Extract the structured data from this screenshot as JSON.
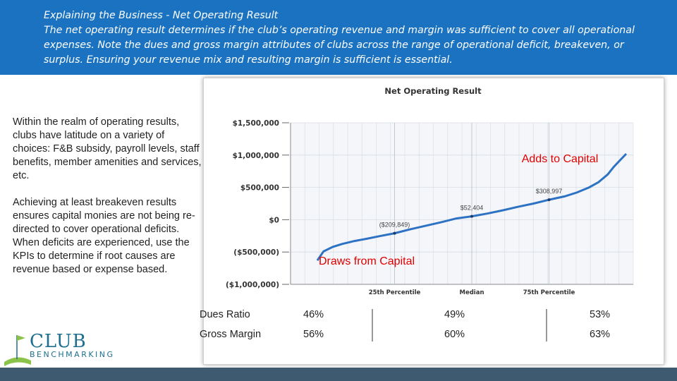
{
  "header": {
    "title": "Explaining the Business  -  Net Operating Result",
    "description": "The net operating result determines if the club’s operating revenue and margin was sufficient to cover all operational expenses. Note the dues and gross margin attributes of clubs across the range of operational deficit, breakeven, or surplus. Ensuring your revenue mix and resulting margin is sufficient is essential."
  },
  "left_text": {
    "para1": "Within the realm of operating results, clubs have latitude on a variety of choices: F&B subsidy, payroll levels, staff benefits, member amenities and services, etc.",
    "para2": "Achieving at least breakeven results ensures capital monies are not being re-directed to cover operational deficits. When deficits are experienced, use the KPIs to determine if root causes are revenue based or expense based."
  },
  "chart_data": {
    "type": "line",
    "title": "Net Operating Result",
    "ylim": [
      -1000000,
      1500000
    ],
    "y_ticks": [
      1500000,
      1000000,
      500000,
      0,
      -500000,
      -1000000
    ],
    "y_tick_labels": [
      "$1,500,000",
      "$1,000,000",
      "$500,000",
      "$0",
      "($500,000)",
      "($1,000,000)"
    ],
    "x_tick_labels": [
      "25th Percentile",
      "Median",
      "75th Percentile"
    ],
    "x_tick_positions": [
      0.25,
      0.5,
      0.75
    ],
    "series": [
      {
        "x": [
          0,
          0.02,
          0.05,
          0.08,
          0.12,
          0.16,
          0.2,
          0.25,
          0.3,
          0.35,
          0.4,
          0.45,
          0.5,
          0.55,
          0.6,
          0.65,
          0.7,
          0.75,
          0.8,
          0.84,
          0.88,
          0.91,
          0.94,
          0.96,
          0.98,
          1.0
        ],
        "values": [
          -630000,
          -490000,
          -420000,
          -375000,
          -330000,
          -295000,
          -255000,
          -209849,
          -150000,
          -95000,
          -40000,
          20000,
          52404,
          95000,
          145000,
          200000,
          250000,
          308997,
          360000,
          420000,
          500000,
          580000,
          700000,
          820000,
          920000,
          1020000
        ],
        "color": "#2e72c4"
      }
    ],
    "markers": [
      {
        "x": 0.25,
        "y": -209849,
        "label": "($209,849)"
      },
      {
        "x": 0.5,
        "y": 52404,
        "label": "$52,404"
      },
      {
        "x": 0.75,
        "y": 308997,
        "label": "$308,997"
      }
    ],
    "annotations": {
      "surplus": "Adds to Capital",
      "deficit": "Draws from Capital"
    },
    "table": {
      "rows": [
        {
          "label": "Dues Ratio",
          "values": [
            "46%",
            "49%",
            "53%"
          ]
        },
        {
          "label": "Gross Margin",
          "values": [
            "56%",
            "60%",
            "63%"
          ]
        }
      ]
    },
    "colors": {
      "annotation": "#e00000",
      "line": "#2e72c4",
      "grid": "#d8dde4"
    }
  },
  "logo": {
    "line1": "CLUB",
    "line2": "BENCHMARKING"
  }
}
